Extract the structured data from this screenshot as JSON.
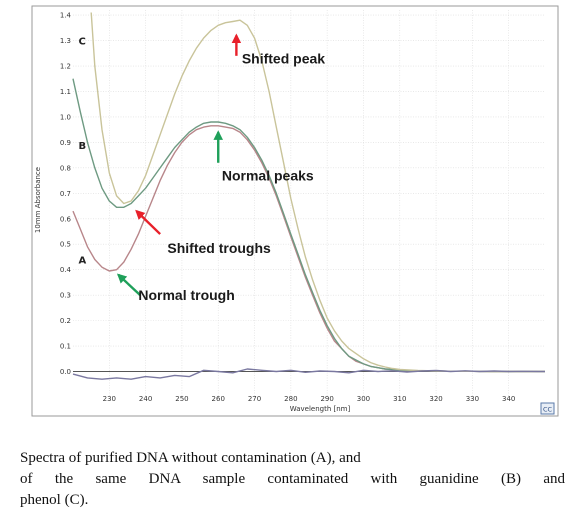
{
  "chart_data": {
    "type": "line",
    "title": "",
    "xlabel": "Wavelength [nm]",
    "ylabel": "10mm Absorbance",
    "xlim": [
      220,
      350
    ],
    "ylim": [
      -0.1,
      1.42
    ],
    "x_ticks": [
      "230",
      "240",
      "250",
      "260",
      "270",
      "280",
      "290",
      "300",
      "310",
      "320",
      "330",
      "340"
    ],
    "y_ticks": [
      "0.0",
      "0.1",
      "0.2",
      "0.3",
      "0.4",
      "0.5",
      "0.6",
      "0.7",
      "0.8",
      "0.9",
      "1.0",
      "1.1",
      "1.2",
      "1.3",
      "1.4"
    ],
    "grid": true,
    "corner_label": "CC",
    "series": [
      {
        "name": "A",
        "color": "#b8868a",
        "x": [
          220,
          222,
          224,
          226,
          228,
          230,
          232,
          234,
          236,
          238,
          240,
          242,
          244,
          246,
          248,
          250,
          252,
          254,
          256,
          258,
          260,
          262,
          264,
          266,
          268,
          270,
          272,
          274,
          276,
          278,
          280,
          282,
          284,
          286,
          288,
          290,
          292,
          294,
          296,
          298,
          300,
          302,
          304,
          306,
          308,
          310,
          315,
          320,
          325,
          330,
          335,
          340,
          345,
          350
        ],
        "y": [
          0.63,
          0.56,
          0.49,
          0.44,
          0.41,
          0.395,
          0.4,
          0.43,
          0.48,
          0.54,
          0.61,
          0.68,
          0.75,
          0.81,
          0.86,
          0.9,
          0.93,
          0.95,
          0.96,
          0.965,
          0.965,
          0.96,
          0.955,
          0.94,
          0.91,
          0.87,
          0.82,
          0.76,
          0.69,
          0.61,
          0.53,
          0.45,
          0.37,
          0.3,
          0.23,
          0.17,
          0.12,
          0.09,
          0.06,
          0.04,
          0.03,
          0.02,
          0.015,
          0.01,
          0.008,
          0.005,
          0.003,
          0.002,
          0.001,
          0.001,
          0.0,
          0.0,
          0.0,
          0.0
        ]
      },
      {
        "name": "B",
        "color": "#6e9a82",
        "x": [
          220,
          222,
          224,
          226,
          228,
          230,
          232,
          234,
          236,
          238,
          240,
          242,
          244,
          246,
          248,
          250,
          252,
          254,
          256,
          258,
          260,
          262,
          264,
          266,
          268,
          270,
          272,
          274,
          276,
          278,
          280,
          282,
          284,
          286,
          288,
          290,
          292,
          294,
          296,
          298,
          300,
          302,
          304,
          306,
          308,
          310,
          315,
          320,
          325,
          330,
          335,
          340,
          345,
          350
        ],
        "y": [
          1.15,
          1.02,
          0.9,
          0.8,
          0.72,
          0.67,
          0.645,
          0.645,
          0.66,
          0.69,
          0.72,
          0.76,
          0.8,
          0.84,
          0.88,
          0.91,
          0.94,
          0.96,
          0.975,
          0.98,
          0.98,
          0.975,
          0.965,
          0.95,
          0.92,
          0.88,
          0.83,
          0.77,
          0.7,
          0.62,
          0.54,
          0.46,
          0.38,
          0.31,
          0.24,
          0.18,
          0.13,
          0.09,
          0.06,
          0.045,
          0.03,
          0.02,
          0.015,
          0.01,
          0.008,
          0.005,
          0.003,
          0.002,
          0.001,
          0.001,
          0.0,
          0.0,
          0.0,
          0.0
        ]
      },
      {
        "name": "C",
        "color": "#c9c49a",
        "x": [
          225,
          226,
          228,
          230,
          232,
          234,
          236,
          238,
          240,
          242,
          244,
          246,
          248,
          250,
          252,
          254,
          256,
          258,
          260,
          262,
          264,
          266,
          268,
          270,
          272,
          274,
          276,
          278,
          280,
          282,
          284,
          286,
          288,
          290,
          292,
          294,
          296,
          298,
          300,
          302,
          304,
          306,
          308,
          310,
          315,
          320,
          325,
          330,
          335,
          340,
          345,
          350
        ],
        "y": [
          1.41,
          1.2,
          0.95,
          0.78,
          0.69,
          0.66,
          0.67,
          0.71,
          0.77,
          0.85,
          0.93,
          1.01,
          1.09,
          1.16,
          1.22,
          1.27,
          1.31,
          1.34,
          1.36,
          1.37,
          1.375,
          1.38,
          1.36,
          1.31,
          1.22,
          1.1,
          0.96,
          0.82,
          0.68,
          0.56,
          0.45,
          0.36,
          0.28,
          0.21,
          0.16,
          0.12,
          0.09,
          0.07,
          0.05,
          0.035,
          0.025,
          0.018,
          0.012,
          0.008,
          0.004,
          0.002,
          0.001,
          0.001,
          0.0,
          0.0,
          0.0,
          0.0
        ]
      },
      {
        "name": "",
        "color": "#7a78a0",
        "x": [
          220,
          224,
          228,
          232,
          236,
          240,
          244,
          248,
          252,
          256,
          260,
          264,
          268,
          272,
          276,
          280,
          284,
          288,
          292,
          296,
          300,
          304,
          308,
          312,
          316,
          320,
          324,
          328,
          332,
          336,
          340,
          344,
          348,
          350
        ],
        "y": [
          -0.01,
          -0.025,
          -0.03,
          -0.025,
          -0.03,
          -0.02,
          -0.025,
          -0.015,
          -0.02,
          0.005,
          0.0,
          -0.005,
          0.01,
          0.005,
          0.0,
          0.005,
          -0.003,
          0.002,
          0.0,
          -0.005,
          0.005,
          0.0,
          0.003,
          -0.002,
          0.002,
          0.004,
          0.0,
          0.003,
          0.0,
          0.002,
          0.0,
          0.001,
          0.0,
          0.0
        ]
      }
    ],
    "series_labels": [
      {
        "text": "C",
        "x": 221.5,
        "y": 1.3
      },
      {
        "text": "B",
        "x": 221.5,
        "y": 0.89
      },
      {
        "text": "A",
        "x": 221.5,
        "y": 0.44
      }
    ],
    "annotations": [
      {
        "text": "Shifted peak",
        "color": "#e8202a",
        "arrow_from": [
          265,
          1.24
        ],
        "arrow_to": [
          265,
          1.32
        ],
        "label_at": [
          266.5,
          1.23
        ]
      },
      {
        "text": "Normal peaks",
        "color": "#1fa05a",
        "arrow_from": [
          260,
          0.82
        ],
        "arrow_to": [
          260,
          0.94
        ],
        "label_at": [
          261,
          0.77
        ]
      },
      {
        "text": "Shifted troughs",
        "color": "#e8202a",
        "arrow_from": [
          244,
          0.54
        ],
        "arrow_to": [
          237.5,
          0.63
        ],
        "label_at": [
          246,
          0.485
        ]
      },
      {
        "text": "Normal trough",
        "color": "#1fa05a",
        "arrow_from": [
          238.5,
          0.3
        ],
        "arrow_to": [
          232.5,
          0.38
        ],
        "label_at": [
          238,
          0.3
        ]
      }
    ]
  },
  "caption": {
    "line1": "Spectra of purified DNA without contamination (A), and",
    "line2": "of the same DNA sample contaminated with guanidine (B) and",
    "line3": "phenol (C)."
  }
}
